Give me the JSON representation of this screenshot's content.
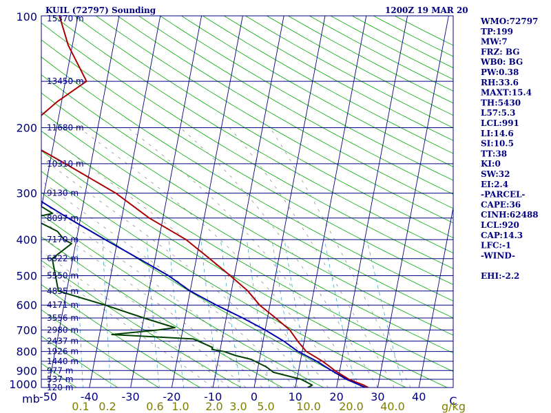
{
  "header": {
    "station": "KUIL (72797) Sounding",
    "time": "1200Z 19 MAR 20"
  },
  "side_panel": [
    "WMO:72797",
    "TP:199",
    "MW:7",
    "FRZ: BG",
    "WB0: BG",
    "PW:0.38",
    "RH:33.6",
    "MAXT:15.4",
    "TH:5430",
    "L57:5.3",
    "LCL:991",
    "LI:14.6",
    "SI:10.5",
    "TT:38",
    "KI:0",
    "SW:32",
    "EI:2.4",
    "-PARCEL-",
    "CAPE:36",
    "CINH:62488",
    "LCL:920",
    "CAP:14.3",
    "LFC:-1",
    "-WIND-",
    "",
    "EHI:-2.2"
  ],
  "colors": {
    "isobar": "#000080",
    "temperature": "#aa0000",
    "dewpoint": "#004000",
    "parcel": "#0000aa",
    "isotherm": "#000080",
    "dry_adiabat": "#00aa00",
    "moist_adiabat": "#808080",
    "mixing_ratio": "#3fa9c8"
  },
  "chart_data": {
    "type": "line",
    "title": "KUIL (72797) Sounding",
    "xlabel": "",
    "ylabel": "mb",
    "ylim": [
      1000,
      100
    ],
    "xlim": [
      -50,
      50
    ],
    "y_ticks": [
      100,
      200,
      300,
      400,
      500,
      600,
      700,
      800,
      900,
      1000
    ],
    "y_axis_unit": "mb",
    "x_ticks": [
      -50,
      -40,
      -30,
      -20,
      -10,
      0,
      10,
      20,
      30,
      40
    ],
    "x_end_label": "C",
    "mixing_ratio_ticks": [
      "0.1",
      "0.2",
      "0.6",
      "1.0",
      "2.0",
      "3.0",
      "5.0",
      "10.0",
      "20.0",
      "40.0"
    ],
    "mixing_ratio_unit": "g/kg",
    "height_levels": [
      {
        "p": 150,
        "label": "13450 m"
      },
      {
        "p": 200,
        "label": "11680 m"
      },
      {
        "p": 250,
        "label": "10310 m"
      },
      {
        "p": 300,
        "label": "9130 m"
      },
      {
        "p": 350,
        "label": "8097 m"
      },
      {
        "p": 400,
        "label": "7170 m"
      },
      {
        "p": 450,
        "label": "6322 m"
      },
      {
        "p": 500,
        "label": "5550 m"
      },
      {
        "p": 550,
        "label": "4835 m"
      },
      {
        "p": 600,
        "label": "4171 m"
      },
      {
        "p": 650,
        "label": "3556 m"
      },
      {
        "p": 700,
        "label": "2980 m"
      },
      {
        "p": 750,
        "label": "2437 m"
      },
      {
        "p": 800,
        "label": "1926 m"
      },
      {
        "p": 850,
        "label": "1440 m"
      },
      {
        "p": 900,
        "label": "977 m"
      },
      {
        "p": 950,
        "label": "537 m"
      },
      {
        "p": 1000,
        "label": "120 m"
      }
    ],
    "top_height_label": "15370 m",
    "series": [
      {
        "key": "temperature",
        "points": [
          [
            100,
            -64.5
          ],
          [
            120,
            -61
          ],
          [
            150,
            -54.9
          ],
          [
            170,
            -61
          ],
          [
            200,
            -67.2
          ],
          [
            220,
            -66
          ],
          [
            250,
            -56.2
          ],
          [
            300,
            -42.6
          ],
          [
            350,
            -33.3
          ],
          [
            400,
            -23.4
          ],
          [
            450,
            -16.8
          ],
          [
            500,
            -11.0
          ],
          [
            550,
            -6.0
          ],
          [
            600,
            -2.5
          ],
          [
            650,
            2.0
          ],
          [
            700,
            6.0
          ],
          [
            750,
            8.4
          ],
          [
            800,
            11.0
          ],
          [
            850,
            15.4
          ],
          [
            880,
            17.5
          ],
          [
            900,
            18.8
          ],
          [
            950,
            22.6
          ],
          [
            985,
            26.5
          ],
          [
            1000,
            27.7
          ]
        ]
      },
      {
        "key": "dewpoint",
        "points": [
          [
            100,
            -77
          ],
          [
            120,
            -79
          ],
          [
            140,
            -82
          ],
          [
            150,
            -84
          ],
          [
            200,
            -85
          ],
          [
            250,
            -77
          ],
          [
            270,
            -74
          ],
          [
            300,
            -66
          ],
          [
            340,
            -57
          ],
          [
            350,
            -62
          ],
          [
            380,
            -55
          ],
          [
            400,
            -53
          ],
          [
            410,
            -51
          ],
          [
            450,
            -55
          ],
          [
            550,
            -52
          ],
          [
            600,
            -40
          ],
          [
            650,
            -30
          ],
          [
            690,
            -22
          ],
          [
            700,
            -26
          ],
          [
            720,
            -37
          ],
          [
            740,
            -17
          ],
          [
            780,
            -12
          ],
          [
            790,
            -12
          ],
          [
            800,
            -9
          ],
          [
            820,
            -6
          ],
          [
            840,
            -2
          ],
          [
            860,
            0
          ],
          [
            880,
            2
          ],
          [
            910,
            4
          ],
          [
            950,
            11
          ],
          [
            985,
            14
          ],
          [
            1000,
            13
          ]
        ]
      },
      {
        "key": "parcel",
        "points": [
          [
            110,
            -100
          ],
          [
            150,
            -93
          ],
          [
            200,
            -87
          ],
          [
            250,
            -76
          ],
          [
            300,
            -64
          ],
          [
            350,
            -53
          ],
          [
            400,
            -43
          ],
          [
            450,
            -34
          ],
          [
            500,
            -26
          ],
          [
            550,
            -20
          ],
          [
            600,
            -13
          ],
          [
            650,
            -6
          ],
          [
            700,
            0
          ],
          [
            750,
            5
          ],
          [
            800,
            9
          ],
          [
            850,
            14
          ],
          [
            900,
            18
          ],
          [
            950,
            22
          ],
          [
            1000,
            27
          ]
        ]
      }
    ]
  }
}
